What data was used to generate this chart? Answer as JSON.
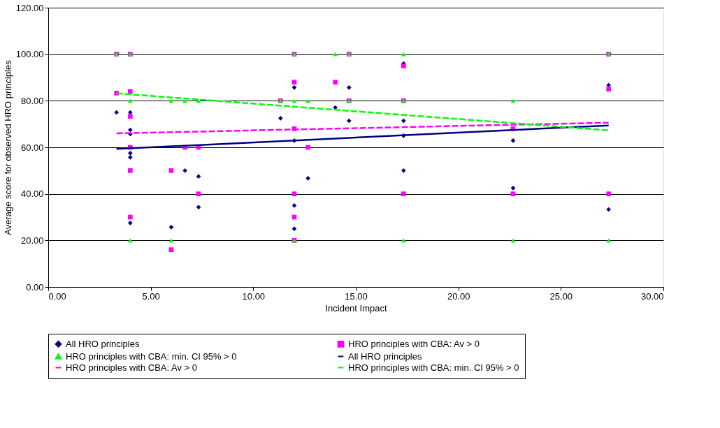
{
  "chart_data": {
    "type": "scatter",
    "xlabel": "Incident Impact",
    "ylabel": "Average score for observed HRO principles",
    "xlim": [
      0,
      30
    ],
    "xticks": [
      {
        "value": 0,
        "label": "0.00"
      },
      {
        "value": 5,
        "label": "5.00"
      },
      {
        "value": 10,
        "label": "10.00"
      },
      {
        "value": 15,
        "label": "15.00"
      },
      {
        "value": 20,
        "label": "20.00"
      },
      {
        "value": 25,
        "label": "25.00"
      },
      {
        "value": 30,
        "label": "30.00"
      }
    ],
    "ylim": [
      0,
      120
    ],
    "yticks": [
      {
        "value": 0,
        "label": "0.00"
      },
      {
        "value": 20,
        "label": "20.00"
      },
      {
        "value": 40,
        "label": "40.00"
      },
      {
        "value": 60,
        "label": "60.00"
      },
      {
        "value": 80,
        "label": "80.00"
      },
      {
        "value": 100,
        "label": "100.00"
      },
      {
        "value": 120,
        "label": "120.00"
      }
    ],
    "grid": "y",
    "legend": "bottom",
    "series": [
      {
        "name": "All HRO principles",
        "type": "scatter",
        "marker": "diamond",
        "color": "#000080",
        "x": [
          3.33,
          4,
          4,
          4,
          4,
          4,
          4,
          6,
          6.67,
          7.33,
          7.33,
          11.33,
          12,
          12,
          12,
          12,
          12.67,
          14,
          14.67,
          14.67,
          17.33,
          17.33,
          17.33,
          17.33,
          22.67,
          22.67,
          27.33,
          27.33
        ],
        "values": [
          75,
          75,
          67.5,
          65.7,
          57.5,
          55.7,
          27.5,
          25.7,
          50,
          47.5,
          34.3,
          72.5,
          85.7,
          62.9,
          35,
          25,
          46.7,
          77.1,
          85.7,
          71.4,
          96,
          71.4,
          65,
          50,
          62.9,
          42.5,
          86.7,
          33.3
        ]
      },
      {
        "name": "HRO principles with CBA: Av > 0",
        "type": "scatter",
        "marker": "square",
        "color": "#ff00ff",
        "x": [
          3.33,
          3.33,
          4,
          4,
          4,
          4,
          4,
          4,
          6,
          6,
          6.67,
          7.33,
          7.33,
          11.33,
          12,
          12,
          12,
          12,
          12,
          12,
          12.67,
          14,
          14.67,
          14.67,
          17.33,
          17.33,
          17.33,
          22.67,
          22.67,
          27.33,
          27.33,
          27.33
        ],
        "values": [
          100,
          83.3,
          100,
          84,
          73.3,
          60,
          50,
          30,
          50,
          16,
          60,
          60,
          40,
          80,
          100,
          88,
          68,
          40,
          30,
          20,
          60,
          88,
          100,
          80,
          95,
          80,
          40,
          68,
          40,
          100,
          85,
          40
        ]
      },
      {
        "name": "HRO principles with CBA: min. CI 95% > 0",
        "type": "scatter",
        "marker": "triangle",
        "color": "#00ff00",
        "x": [
          3.33,
          4,
          4,
          4,
          6,
          6,
          6.67,
          7.33,
          11.33,
          12,
          12,
          12,
          12.67,
          14,
          14.67,
          14.67,
          17.33,
          17.33,
          17.33,
          22.67,
          22.67,
          27.33,
          27.33
        ],
        "values": [
          100,
          100,
          80,
          20,
          80,
          20,
          80,
          80,
          80,
          100,
          80,
          20,
          80,
          100,
          100,
          80,
          100,
          80,
          20,
          80,
          20,
          100,
          20
        ]
      },
      {
        "name": "All HRO principles",
        "type": "line",
        "line_style": "solid",
        "color": "#000080",
        "x": [
          3.33,
          27.33
        ],
        "values": [
          59.3,
          69.4
        ]
      },
      {
        "name": "HRO principles with CBA: Av > 0",
        "type": "line",
        "line_style": "dashed",
        "color": "#ff00ff",
        "x": [
          3.33,
          27.33
        ],
        "values": [
          66,
          70.6
        ]
      },
      {
        "name": "HRO principles with CBA: min. CI 95% > 0",
        "type": "line",
        "line_style": "dashed",
        "color": "#00ff00",
        "x": [
          3.33,
          27.33
        ],
        "values": [
          83.2,
          67.3
        ]
      }
    ]
  }
}
